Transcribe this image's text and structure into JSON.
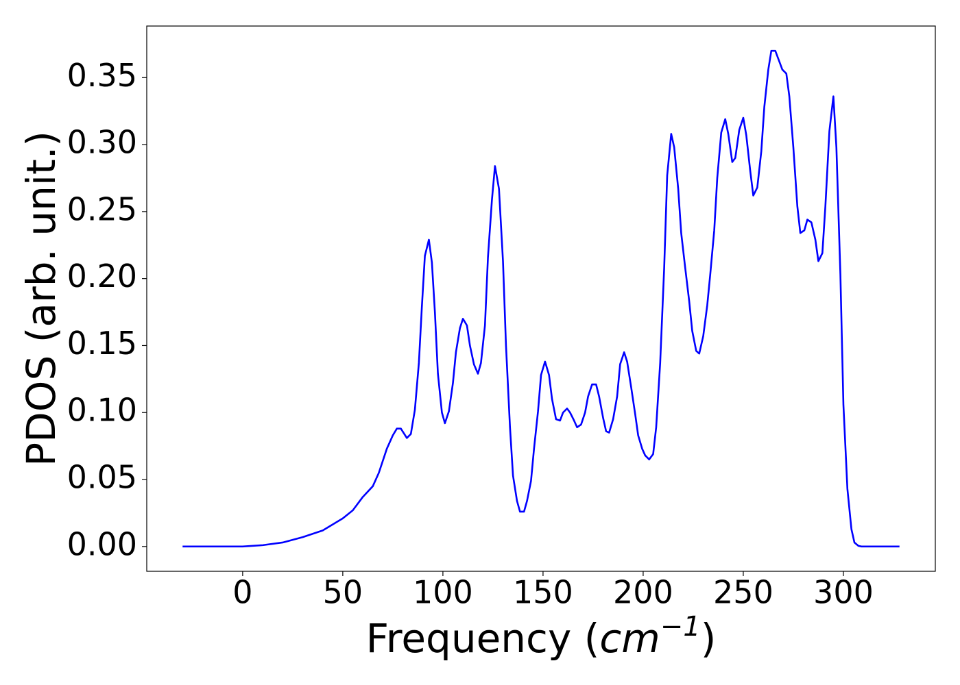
{
  "chart_data": {
    "type": "line",
    "x_label": [
      "Frequency (",
      "cm",
      "−1",
      ")"
    ],
    "y_label": "PDOS (arb. unit.)",
    "xlim": [
      -47.9,
      345.9
    ],
    "ylim": [
      -0.0185,
      0.3885
    ],
    "xticks": [
      0,
      50,
      100,
      150,
      200,
      250,
      300
    ],
    "yticks": [
      {
        "value": 0,
        "label": "0.00"
      },
      {
        "value": 0.05,
        "label": "0.05"
      },
      {
        "value": 0.1,
        "label": "0.10"
      },
      {
        "value": 0.15,
        "label": "0.15"
      },
      {
        "value": 0.2,
        "label": "0.20"
      },
      {
        "value": 0.25,
        "label": "0.25"
      },
      {
        "value": 0.3,
        "label": "0.30"
      },
      {
        "value": 0.35,
        "label": "0.35"
      }
    ],
    "grid": false,
    "series": [
      {
        "color": "#0000ff",
        "x": [
          -30,
          0,
          10,
          20,
          30,
          40,
          50,
          55,
          60,
          65,
          68,
          72,
          75,
          77,
          79,
          82,
          84,
          86,
          88,
          89.5,
          91,
          93,
          94.5,
          96,
          97.5,
          99.5,
          101,
          103,
          105,
          106.5,
          108.5,
          110,
          112,
          113.5,
          115.5,
          117.5,
          119,
          121,
          122.5,
          124.5,
          126,
          128,
          130,
          131.5,
          133.5,
          135,
          137,
          138.5,
          140.5,
          142,
          144,
          145.5,
          147.5,
          149,
          151,
          153,
          154.5,
          156.5,
          158.5,
          160,
          162,
          163.5,
          165.5,
          167,
          169,
          171,
          172.5,
          174.5,
          176.5,
          178,
          180,
          181.5,
          183,
          185,
          187,
          188.5,
          190.5,
          192,
          194,
          196,
          197.5,
          199.5,
          201,
          203,
          205,
          206.5,
          208.5,
          210.5,
          212,
          214,
          215.5,
          217.5,
          219,
          221,
          223,
          224.5,
          226.5,
          228,
          230,
          232,
          233.5,
          235.5,
          237,
          239,
          241,
          242.5,
          244.5,
          246,
          248,
          250,
          251.5,
          253.5,
          255,
          257,
          259,
          260.5,
          262.5,
          264,
          266,
          268,
          269.5,
          271.5,
          273,
          275,
          277,
          278.5,
          280.5,
          282,
          284,
          286,
          287.5,
          289.5,
          291,
          293,
          295,
          296.5,
          298.5,
          300,
          302,
          304,
          305.5,
          307.5,
          309,
          328
        ],
        "values": [
          0,
          0,
          0.001,
          0.003,
          0.007,
          0.012,
          0.021,
          0.027,
          0.037,
          0.045,
          0.055,
          0.073,
          0.083,
          0.088,
          0.088,
          0.081,
          0.084,
          0.102,
          0.137,
          0.179,
          0.217,
          0.229,
          0.212,
          0.175,
          0.129,
          0.1,
          0.092,
          0.101,
          0.122,
          0.145,
          0.163,
          0.17,
          0.165,
          0.15,
          0.136,
          0.129,
          0.137,
          0.165,
          0.216,
          0.259,
          0.284,
          0.267,
          0.213,
          0.15,
          0.089,
          0.053,
          0.034,
          0.026,
          0.026,
          0.034,
          0.049,
          0.073,
          0.101,
          0.128,
          0.138,
          0.128,
          0.11,
          0.095,
          0.094,
          0.1,
          0.103,
          0.1,
          0.094,
          0.089,
          0.091,
          0.1,
          0.112,
          0.121,
          0.121,
          0.112,
          0.096,
          0.086,
          0.085,
          0.095,
          0.112,
          0.136,
          0.145,
          0.138,
          0.119,
          0.099,
          0.083,
          0.073,
          0.068,
          0.065,
          0.069,
          0.089,
          0.137,
          0.208,
          0.277,
          0.308,
          0.298,
          0.267,
          0.234,
          0.208,
          0.183,
          0.161,
          0.146,
          0.144,
          0.157,
          0.18,
          0.203,
          0.236,
          0.275,
          0.309,
          0.319,
          0.308,
          0.287,
          0.29,
          0.311,
          0.32,
          0.307,
          0.28,
          0.262,
          0.268,
          0.295,
          0.328,
          0.356,
          0.37,
          0.37,
          0.362,
          0.356,
          0.353,
          0.336,
          0.298,
          0.254,
          0.234,
          0.236,
          0.244,
          0.242,
          0.229,
          0.213,
          0.219,
          0.254,
          0.31,
          0.336,
          0.298,
          0.203,
          0.106,
          0.043,
          0.013,
          0.003,
          0.0005,
          0,
          0
        ]
      }
    ]
  }
}
